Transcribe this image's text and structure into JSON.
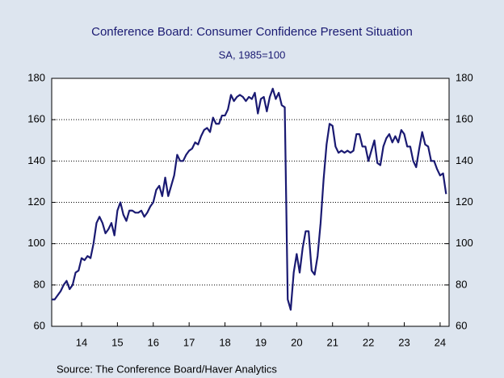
{
  "chart_data": {
    "type": "line",
    "title": "Conference Board: Consumer Confidence Present Situation",
    "subtitle": "SA, 1985=100",
    "source": "Source:  The Conference Board/Haver Analytics",
    "xlim": [
      2013.667,
      2024.75
    ],
    "xticks": [
      {
        "value": 2014.5,
        "label": "14"
      },
      {
        "value": 2015.5,
        "label": "15"
      },
      {
        "value": 2016.5,
        "label": "16"
      },
      {
        "value": 2017.5,
        "label": "17"
      },
      {
        "value": 2018.5,
        "label": "18"
      },
      {
        "value": 2019.5,
        "label": "19"
      },
      {
        "value": 2020.5,
        "label": "20"
      },
      {
        "value": 2021.5,
        "label": "21"
      },
      {
        "value": 2022.5,
        "label": "22"
      },
      {
        "value": 2023.5,
        "label": "23"
      },
      {
        "value": 2024.5,
        "label": "24"
      }
    ],
    "ylim": [
      60,
      180
    ],
    "yticks": [
      60,
      80,
      100,
      120,
      140,
      160,
      180
    ],
    "grid": true,
    "x": [
      2013.667,
      2013.75,
      2013.833,
      2013.917,
      2014,
      2014.083,
      2014.167,
      2014.25,
      2014.333,
      2014.417,
      2014.5,
      2014.583,
      2014.667,
      2014.75,
      2014.833,
      2014.917,
      2015,
      2015.083,
      2015.167,
      2015.25,
      2015.333,
      2015.417,
      2015.5,
      2015.583,
      2015.667,
      2015.75,
      2015.833,
      2015.917,
      2016,
      2016.083,
      2016.167,
      2016.25,
      2016.333,
      2016.417,
      2016.5,
      2016.583,
      2016.667,
      2016.75,
      2016.833,
      2016.917,
      2017,
      2017.083,
      2017.167,
      2017.25,
      2017.333,
      2017.417,
      2017.5,
      2017.583,
      2017.667,
      2017.75,
      2017.833,
      2017.917,
      2018,
      2018.083,
      2018.167,
      2018.25,
      2018.333,
      2018.417,
      2018.5,
      2018.583,
      2018.667,
      2018.75,
      2018.833,
      2018.917,
      2019,
      2019.083,
      2019.167,
      2019.25,
      2019.333,
      2019.417,
      2019.5,
      2019.583,
      2019.667,
      2019.75,
      2019.833,
      2019.917,
      2020,
      2020.083,
      2020.167,
      2020.25,
      2020.333,
      2020.417,
      2020.5,
      2020.583,
      2020.667,
      2020.75,
      2020.833,
      2020.917,
      2021,
      2021.083,
      2021.167,
      2021.25,
      2021.333,
      2021.417,
      2021.5,
      2021.583,
      2021.667,
      2021.75,
      2021.833,
      2021.917,
      2022,
      2022.083,
      2022.167,
      2022.25,
      2022.333,
      2022.417,
      2022.5,
      2022.583,
      2022.667,
      2022.75,
      2022.833,
      2022.917,
      2023,
      2023.083,
      2023.167,
      2023.25,
      2023.333,
      2023.417,
      2023.5,
      2023.583,
      2023.667,
      2023.75,
      2023.833,
      2023.917,
      2024,
      2024.083,
      2024.167,
      2024.25,
      2024.333,
      2024.417,
      2024.5,
      2024.583,
      2024.667
    ],
    "series": [
      {
        "color": "#1a1a72",
        "values": [
          73,
          73,
          75,
          77,
          80,
          82,
          78,
          80,
          86,
          87,
          93,
          92,
          94,
          93,
          100,
          110,
          113,
          110,
          105,
          107,
          110,
          104,
          116,
          120,
          114,
          111,
          116,
          116,
          115,
          115,
          116,
          113,
          115,
          118,
          120,
          126,
          128,
          123,
          132,
          123,
          128,
          133,
          143,
          140,
          140,
          143,
          145,
          146,
          149,
          148,
          152,
          155,
          156,
          154,
          161,
          158,
          158,
          162,
          162,
          165,
          172,
          169,
          171,
          172,
          171,
          169,
          171,
          170,
          173,
          163,
          170,
          171,
          164,
          171,
          175,
          170,
          173,
          167,
          166,
          73,
          68,
          86,
          95,
          86,
          98,
          106,
          106,
          87,
          85,
          94,
          110,
          131,
          148,
          158,
          157,
          147,
          144,
          145,
          144,
          145,
          144,
          145,
          153,
          153,
          147,
          147,
          140,
          145,
          150,
          139,
          138,
          147,
          151,
          153,
          149,
          152,
          149,
          155,
          153,
          147,
          147,
          140,
          137,
          146,
          154,
          148,
          147,
          140,
          140,
          136,
          133,
          134,
          124
        ]
      }
    ]
  }
}
